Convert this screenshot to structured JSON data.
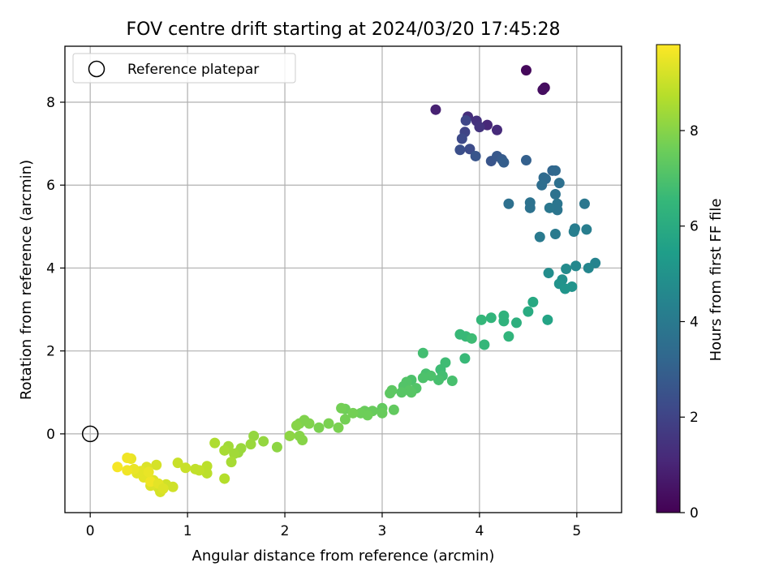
{
  "chart_data": {
    "type": "scatter",
    "title": "FOV centre drift starting at 2024/03/20 17:45:28",
    "xlabel": "Angular distance from reference (arcmin)",
    "ylabel": "Rotation from reference (arcmin)",
    "xlim": [
      -0.26,
      5.46
    ],
    "ylim": [
      -1.9,
      9.35
    ],
    "xticks": [
      "0",
      "1",
      "2",
      "3",
      "4",
      "5"
    ],
    "yticks": [
      "0",
      "2",
      "4",
      "6",
      "8"
    ],
    "grid": true,
    "legend": {
      "placement": "top-left",
      "entries": [
        "Reference platepar"
      ]
    },
    "reference_point": {
      "x": 0.0,
      "y": 0.0
    },
    "colorbar": {
      "label": "Hours from first FF file",
      "range": [
        0,
        9.8
      ],
      "ticks": [
        "0",
        "2",
        "4",
        "6",
        "8"
      ],
      "colormap": "viridis"
    },
    "colormap_stops": [
      "#440154",
      "#482878",
      "#3e4989",
      "#31688e",
      "#26828e",
      "#1f9e89",
      "#35b779",
      "#6ece58",
      "#b5de2b",
      "#fde725"
    ],
    "series": [
      {
        "points": [
          [
            4.48,
            8.77,
            0.2
          ],
          [
            4.67,
            8.35,
            0.3
          ],
          [
            4.65,
            8.3,
            0.35
          ],
          [
            3.55,
            7.82,
            0.9
          ],
          [
            3.88,
            7.65,
            1.3
          ],
          [
            4.08,
            7.45,
            1.1
          ],
          [
            4.18,
            7.33,
            1.2
          ],
          [
            3.97,
            7.55,
            1.4
          ],
          [
            4.0,
            7.4,
            1.5
          ],
          [
            3.86,
            7.56,
            2.1
          ],
          [
            3.85,
            7.28,
            2.0
          ],
          [
            3.82,
            7.12,
            2.2
          ],
          [
            3.8,
            6.85,
            2.4
          ],
          [
            3.9,
            6.87,
            2.3
          ],
          [
            3.96,
            6.7,
            2.6
          ],
          [
            4.12,
            6.58,
            2.6
          ],
          [
            4.18,
            6.7,
            2.7
          ],
          [
            4.23,
            6.62,
            2.8
          ],
          [
            4.25,
            6.55,
            2.9
          ],
          [
            4.48,
            6.6,
            3.0
          ],
          [
            4.75,
            6.35,
            3.2
          ],
          [
            4.78,
            6.35,
            3.3
          ],
          [
            4.66,
            6.18,
            3.4
          ],
          [
            4.68,
            6.15,
            3.4
          ],
          [
            4.64,
            6.0,
            3.5
          ],
          [
            4.82,
            6.05,
            3.6
          ],
          [
            4.3,
            5.55,
            3.6
          ],
          [
            4.52,
            5.58,
            3.7
          ],
          [
            4.52,
            5.45,
            3.7
          ],
          [
            4.78,
            5.78,
            3.7
          ],
          [
            4.8,
            5.55,
            3.8
          ],
          [
            4.8,
            5.4,
            3.8
          ],
          [
            4.72,
            5.45,
            3.9
          ],
          [
            5.08,
            5.55,
            3.9
          ],
          [
            4.62,
            4.75,
            4.0
          ],
          [
            4.78,
            4.82,
            4.0
          ],
          [
            4.98,
            4.95,
            4.1
          ],
          [
            4.97,
            4.88,
            4.2
          ],
          [
            5.1,
            4.93,
            4.2
          ],
          [
            5.19,
            4.12,
            4.4
          ],
          [
            5.12,
            4.0,
            4.5
          ],
          [
            4.99,
            4.05,
            4.6
          ],
          [
            4.89,
            3.98,
            4.7
          ],
          [
            4.71,
            3.88,
            4.8
          ],
          [
            4.85,
            3.72,
            4.9
          ],
          [
            4.82,
            3.62,
            5.0
          ],
          [
            4.95,
            3.55,
            5.0
          ],
          [
            4.88,
            3.5,
            5.1
          ],
          [
            4.7,
            2.75,
            5.7
          ],
          [
            4.55,
            3.18,
            5.9
          ],
          [
            4.5,
            2.95,
            6.0
          ],
          [
            4.38,
            2.68,
            6.2
          ],
          [
            4.25,
            2.85,
            6.3
          ],
          [
            4.25,
            2.72,
            6.3
          ],
          [
            4.3,
            2.35,
            6.4
          ],
          [
            4.12,
            2.8,
            6.4
          ],
          [
            4.02,
            2.75,
            6.5
          ],
          [
            4.05,
            2.15,
            6.5
          ],
          [
            3.8,
            2.4,
            6.6
          ],
          [
            3.86,
            2.35,
            6.6
          ],
          [
            3.92,
            2.3,
            6.7
          ],
          [
            3.85,
            1.82,
            6.6
          ],
          [
            3.6,
            1.55,
            6.7
          ],
          [
            3.65,
            1.72,
            6.7
          ],
          [
            3.42,
            1.95,
            6.8
          ],
          [
            3.62,
            1.4,
            6.8
          ],
          [
            3.58,
            1.3,
            6.9
          ],
          [
            3.72,
            1.28,
            6.9
          ],
          [
            3.45,
            1.45,
            6.9
          ],
          [
            3.5,
            1.4,
            7.0
          ],
          [
            3.42,
            1.35,
            7.0
          ],
          [
            3.3,
            1.3,
            7.0
          ],
          [
            3.25,
            1.25,
            7.1
          ],
          [
            3.22,
            1.15,
            7.1
          ],
          [
            3.35,
            1.1,
            7.1
          ],
          [
            3.28,
            1.05,
            7.2
          ],
          [
            3.3,
            1.0,
            7.2
          ],
          [
            3.2,
            1.0,
            7.2
          ],
          [
            3.1,
            1.05,
            7.3
          ],
          [
            3.08,
            0.98,
            7.3
          ],
          [
            3.12,
            0.58,
            7.4
          ],
          [
            3.0,
            0.62,
            7.4
          ],
          [
            3.0,
            0.5,
            7.5
          ],
          [
            2.9,
            0.55,
            7.5
          ],
          [
            2.82,
            0.55,
            7.5
          ],
          [
            2.78,
            0.5,
            7.6
          ],
          [
            2.85,
            0.45,
            7.6
          ],
          [
            2.62,
            0.6,
            7.6
          ],
          [
            2.58,
            0.62,
            7.7
          ],
          [
            2.7,
            0.5,
            7.7
          ],
          [
            2.62,
            0.35,
            7.7
          ],
          [
            2.55,
            0.15,
            7.8
          ],
          [
            2.45,
            0.25,
            7.8
          ],
          [
            2.35,
            0.15,
            7.8
          ],
          [
            2.25,
            0.25,
            7.9
          ],
          [
            2.2,
            0.33,
            7.9
          ],
          [
            2.15,
            0.25,
            7.9
          ],
          [
            2.12,
            0.2,
            8.0
          ],
          [
            2.15,
            -0.05,
            8.0
          ],
          [
            2.18,
            -0.15,
            8.0
          ],
          [
            2.05,
            -0.05,
            8.1
          ],
          [
            1.92,
            -0.32,
            8.1
          ],
          [
            1.78,
            -0.18,
            8.2
          ],
          [
            1.68,
            -0.05,
            8.2
          ],
          [
            1.65,
            -0.25,
            8.3
          ],
          [
            1.55,
            -0.35,
            8.3
          ],
          [
            1.52,
            -0.45,
            8.3
          ],
          [
            1.48,
            -0.48,
            8.4
          ],
          [
            1.42,
            -0.3,
            8.4
          ],
          [
            1.45,
            -0.68,
            8.5
          ],
          [
            1.38,
            -0.4,
            8.5
          ],
          [
            1.28,
            -0.22,
            8.6
          ],
          [
            1.38,
            -1.08,
            8.7
          ],
          [
            1.2,
            -0.78,
            8.8
          ],
          [
            1.2,
            -0.95,
            8.8
          ],
          [
            1.12,
            -0.88,
            8.9
          ],
          [
            1.08,
            -0.85,
            8.9
          ],
          [
            0.98,
            -0.82,
            9.0
          ],
          [
            0.9,
            -0.7,
            9.0
          ],
          [
            0.85,
            -1.28,
            9.1
          ],
          [
            0.78,
            -1.22,
            9.1
          ],
          [
            0.72,
            -1.4,
            9.2
          ],
          [
            0.7,
            -1.3,
            9.2
          ],
          [
            0.68,
            -0.75,
            9.2
          ],
          [
            0.65,
            -1.12,
            9.3
          ],
          [
            0.62,
            -1.25,
            9.3
          ],
          [
            0.58,
            -0.8,
            9.3
          ],
          [
            0.55,
            -1.05,
            9.4
          ],
          [
            0.52,
            -0.9,
            9.4
          ],
          [
            0.48,
            -0.95,
            9.4
          ],
          [
            0.45,
            -0.85,
            9.5
          ],
          [
            0.42,
            -0.6,
            9.5
          ],
          [
            0.38,
            -0.58,
            9.6
          ],
          [
            0.38,
            -0.88,
            9.6
          ],
          [
            0.28,
            -0.8,
            9.7
          ],
          [
            0.62,
            -1.15,
            9.6
          ],
          [
            0.6,
            -0.92,
            9.5
          ],
          [
            0.7,
            -1.2,
            9.4
          ],
          [
            0.75,
            -1.32,
            9.3
          ]
        ]
      }
    ]
  }
}
